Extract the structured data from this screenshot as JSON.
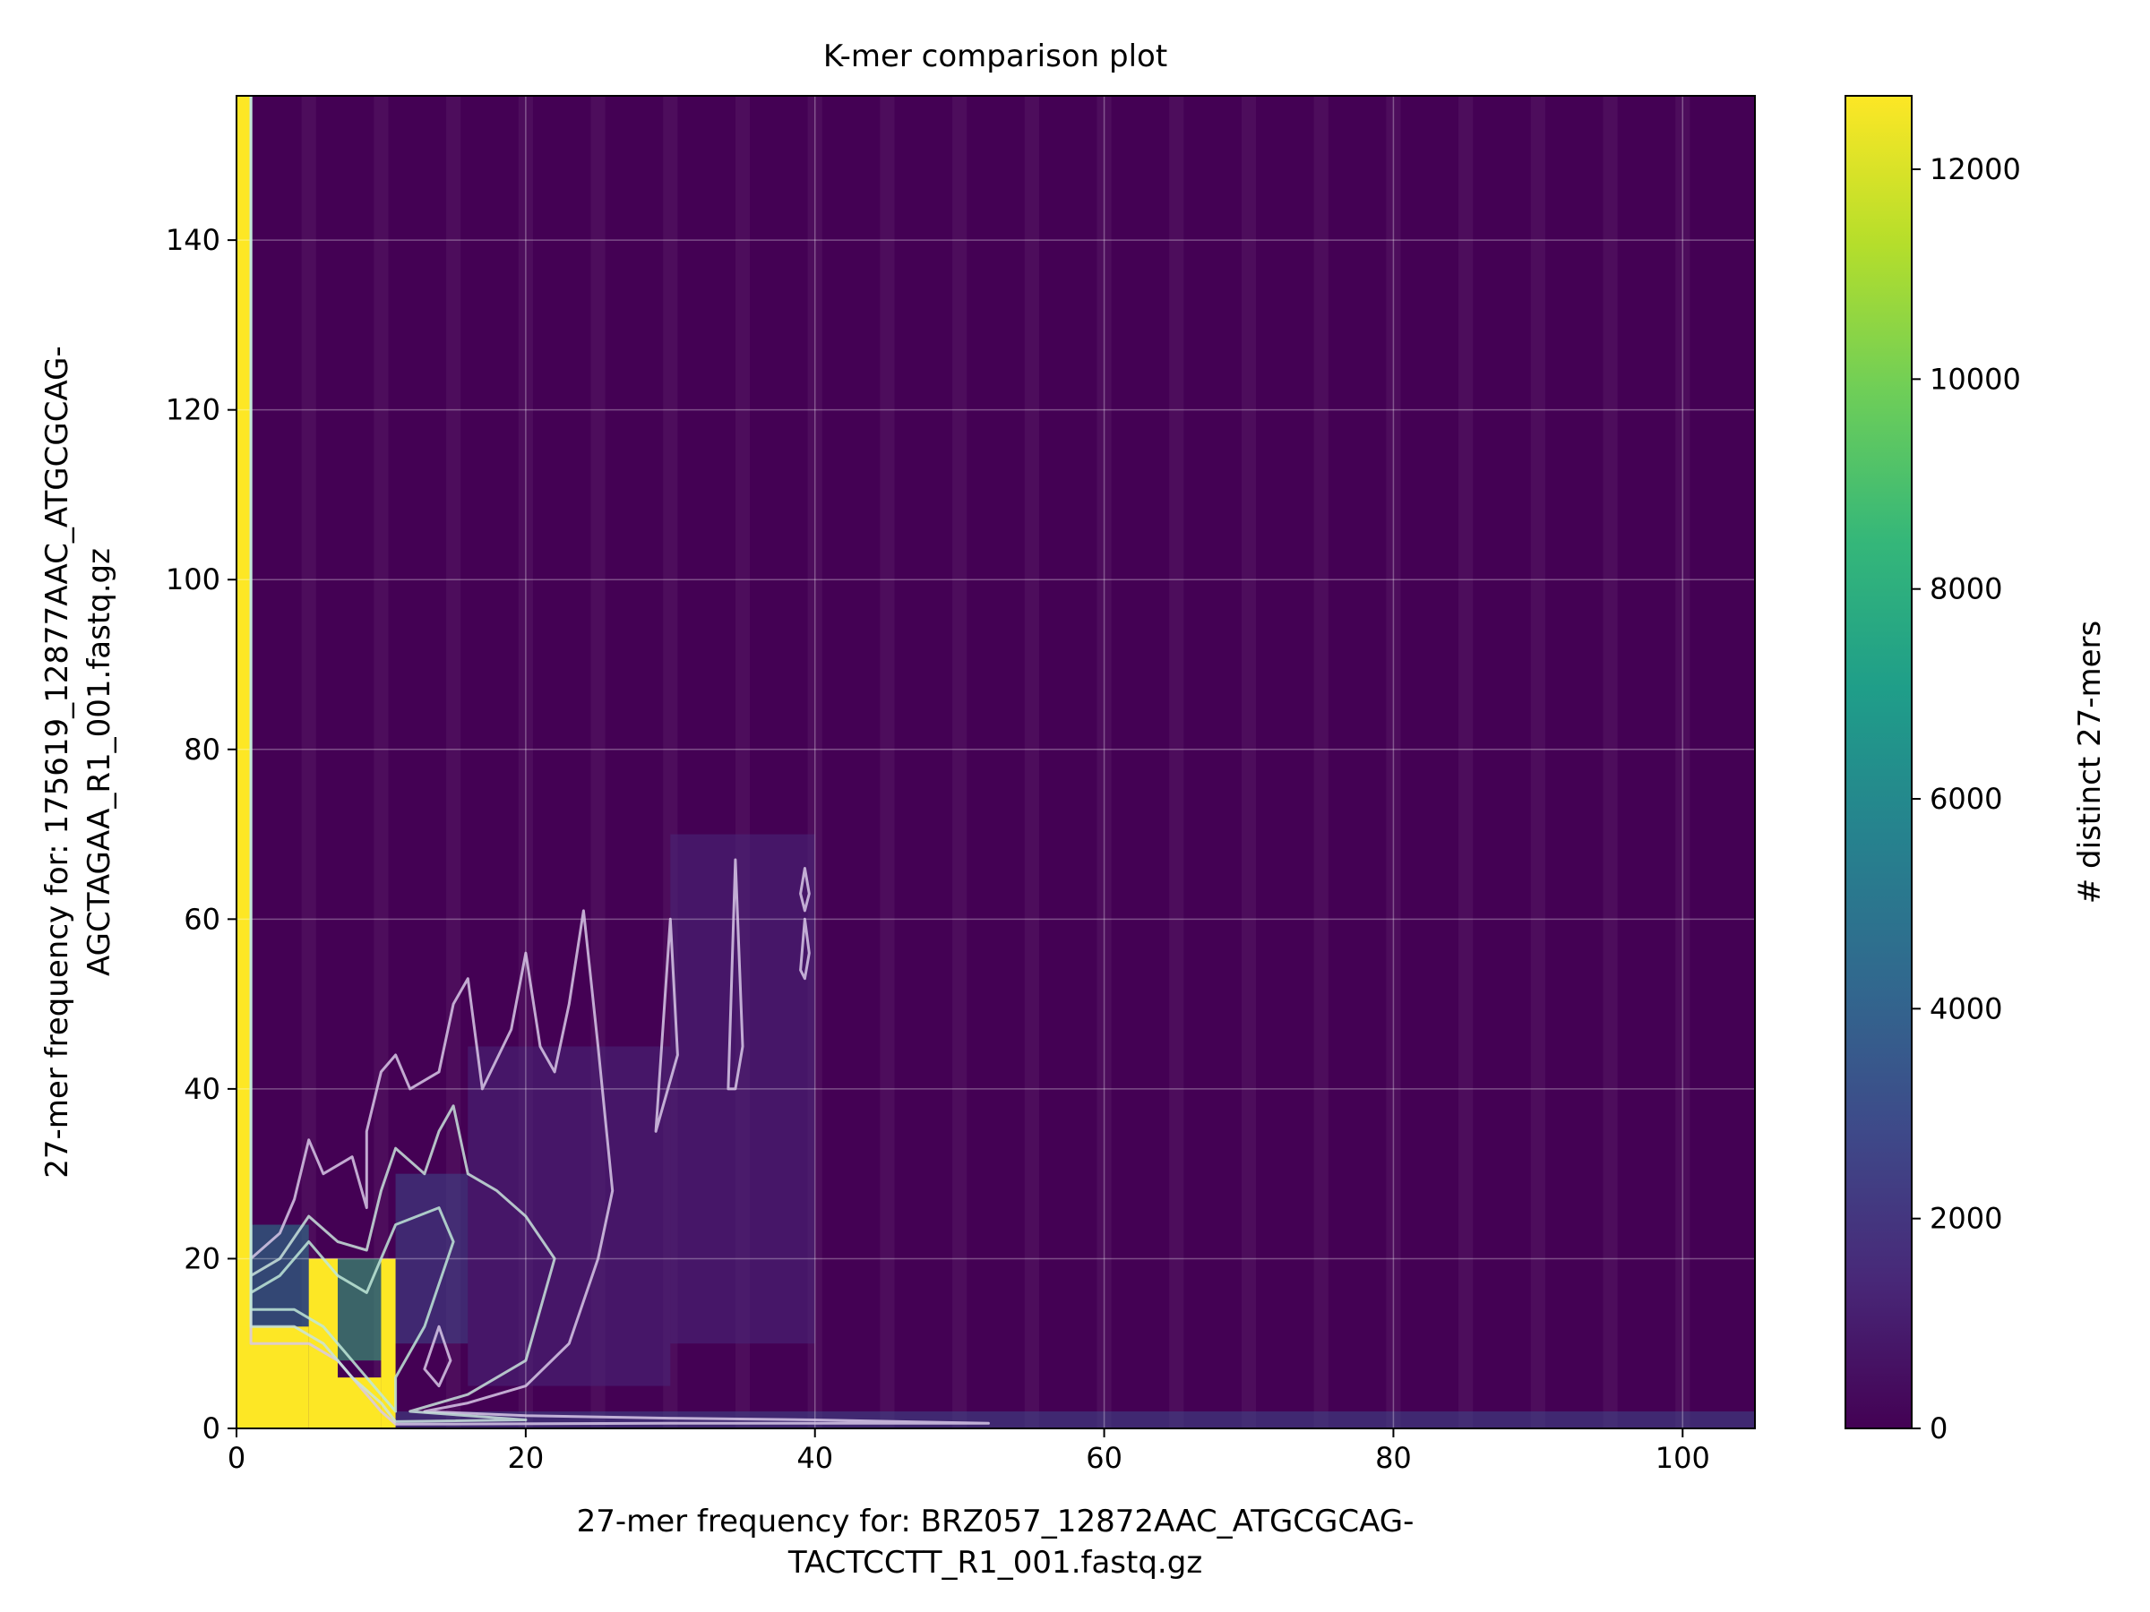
{
  "chart_data": {
    "type": "heatmap",
    "title": "K-mer comparison plot",
    "xlabel_lines": [
      "27-mer frequency for: BRZ057_12872AAC_ATGCGCAG-",
      "TACTCCTT_R1_001.fastq.gz"
    ],
    "ylabel_lines": [
      "27-mer frequency for: 175619_12877AAC_ATGCGCAG-",
      "AGCTAGAA_R1_001.fastq.gz"
    ],
    "colorbar_label": "# distinct 27-mers",
    "xlim": [
      0,
      105
    ],
    "ylim": [
      0,
      157
    ],
    "x_ticks": [
      0,
      20,
      40,
      60,
      80,
      100
    ],
    "y_ticks": [
      0,
      20,
      40,
      60,
      80,
      100,
      120,
      140
    ],
    "colorbar_ticks": [
      0,
      2000,
      4000,
      6000,
      8000,
      10000,
      12000
    ],
    "colorbar_range": [
      0,
      12700
    ],
    "colormap": [
      "#440154",
      "#482878",
      "#3e4989",
      "#31688e",
      "#26828e",
      "#1f9e89",
      "#35b779",
      "#6ece58",
      "#b5de2b",
      "#fde725"
    ],
    "grid": true,
    "contour_color": "#d8c8e8",
    "contour_colors_high": [
      "#c9e3dc",
      "#bfe8d8"
    ],
    "regions": [
      {
        "x": [
          0,
          1
        ],
        "y": [
          0,
          157
        ],
        "value": 12700
      },
      {
        "x": [
          0,
          5
        ],
        "y": [
          0,
          12
        ],
        "value": 12700
      },
      {
        "x": [
          5,
          7
        ],
        "y": [
          0,
          20
        ],
        "value": 12700
      },
      {
        "x": [
          7,
          10
        ],
        "y": [
          0,
          6
        ],
        "value": 12700
      },
      {
        "x": [
          10,
          11
        ],
        "y": [
          0,
          20
        ],
        "value": 12700
      },
      {
        "x": [
          5,
          10
        ],
        "y": [
          8,
          20
        ],
        "value": 8000
      },
      {
        "x": [
          1,
          5
        ],
        "y": [
          12,
          24
        ],
        "value": 5000
      },
      {
        "x": [
          11,
          16
        ],
        "y": [
          10,
          30
        ],
        "value": 3500
      },
      {
        "x": [
          11,
          105
        ],
        "y": [
          0,
          2
        ],
        "value": 2500
      },
      {
        "x": [
          16,
          30
        ],
        "y": [
          5,
          45
        ],
        "value": 1500
      },
      {
        "x": [
          30,
          40
        ],
        "y": [
          10,
          70
        ],
        "value": 900
      }
    ],
    "stripes_x": [
      5,
      10,
      15,
      20,
      25,
      30,
      35,
      40,
      45,
      50,
      55,
      60,
      65,
      70,
      75,
      80,
      85,
      90,
      95,
      100
    ],
    "contours": [
      {
        "level": "outer",
        "points": [
          [
            1,
            157
          ],
          [
            1,
            20
          ],
          [
            3,
            23
          ],
          [
            4,
            27
          ],
          [
            5,
            34
          ],
          [
            6,
            30
          ],
          [
            8,
            32
          ],
          [
            9,
            26
          ],
          [
            9,
            35
          ],
          [
            10,
            42
          ],
          [
            11,
            44
          ],
          [
            12,
            40
          ],
          [
            14,
            42
          ],
          [
            15,
            50
          ],
          [
            16,
            53
          ],
          [
            17,
            40
          ],
          [
            19,
            47
          ],
          [
            20,
            56
          ],
          [
            21,
            45
          ],
          [
            22,
            42
          ],
          [
            23,
            50
          ],
          [
            24,
            61
          ],
          [
            25,
            45
          ],
          [
            26,
            28
          ],
          [
            25,
            20
          ],
          [
            23,
            10
          ],
          [
            20,
            5
          ],
          [
            16,
            3
          ],
          [
            13,
            2
          ],
          [
            20,
            1.5
          ],
          [
            30,
            1.2
          ],
          [
            40,
            1
          ],
          [
            52,
            0.6
          ],
          [
            30,
            0.6
          ],
          [
            11,
            0.5
          ],
          [
            10,
            2
          ],
          [
            9,
            4
          ],
          [
            7,
            8
          ],
          [
            5,
            10
          ],
          [
            3,
            10
          ],
          [
            1,
            10
          ],
          [
            1,
            157
          ]
        ]
      },
      {
        "level": "inner",
        "points": [
          [
            1,
            157
          ],
          [
            1,
            18
          ],
          [
            3,
            20
          ],
          [
            5,
            25
          ],
          [
            7,
            22
          ],
          [
            9,
            21
          ],
          [
            10,
            28
          ],
          [
            11,
            33
          ],
          [
            13,
            30
          ],
          [
            14,
            35
          ],
          [
            15,
            38
          ],
          [
            16,
            30
          ],
          [
            18,
            28
          ],
          [
            20,
            25
          ],
          [
            22,
            20
          ],
          [
            20,
            8
          ],
          [
            16,
            4
          ],
          [
            12,
            2
          ],
          [
            20,
            1
          ],
          [
            11,
            0.8
          ],
          [
            10,
            3
          ],
          [
            8,
            6
          ],
          [
            6,
            10
          ],
          [
            4,
            12
          ],
          [
            1,
            12
          ],
          [
            1,
            157
          ]
        ]
      },
      {
        "level": "high",
        "points": [
          [
            1,
            157
          ],
          [
            1,
            16
          ],
          [
            3,
            18
          ],
          [
            5,
            22
          ],
          [
            7,
            18
          ],
          [
            9,
            16
          ],
          [
            10,
            20
          ],
          [
            11,
            24
          ],
          [
            14,
            26
          ],
          [
            15,
            22
          ],
          [
            13,
            12
          ],
          [
            11,
            6
          ],
          [
            11,
            2
          ],
          [
            10,
            4
          ],
          [
            8,
            8
          ],
          [
            6,
            12
          ],
          [
            4,
            14
          ],
          [
            1,
            14
          ],
          [
            1,
            157
          ]
        ]
      },
      {
        "level": "island",
        "points": [
          [
            29,
            35
          ],
          [
            30,
            60
          ],
          [
            30.5,
            44
          ],
          [
            29.5,
            38
          ],
          [
            29,
            35
          ]
        ]
      },
      {
        "level": "island",
        "points": [
          [
            34,
            40
          ],
          [
            34.5,
            67
          ],
          [
            35,
            45
          ],
          [
            34.5,
            40
          ],
          [
            34,
            40
          ]
        ]
      },
      {
        "level": "island",
        "points": [
          [
            39,
            54
          ],
          [
            39.3,
            60
          ],
          [
            39.6,
            56
          ],
          [
            39.3,
            53
          ],
          [
            39,
            54
          ]
        ]
      },
      {
        "level": "island",
        "points": [
          [
            39,
            63
          ],
          [
            39.3,
            66
          ],
          [
            39.6,
            63
          ],
          [
            39.3,
            61
          ],
          [
            39,
            63
          ]
        ]
      },
      {
        "level": "island",
        "points": [
          [
            13,
            7
          ],
          [
            14,
            12
          ],
          [
            14.8,
            8
          ],
          [
            14,
            5
          ],
          [
            13,
            7
          ]
        ]
      }
    ]
  }
}
